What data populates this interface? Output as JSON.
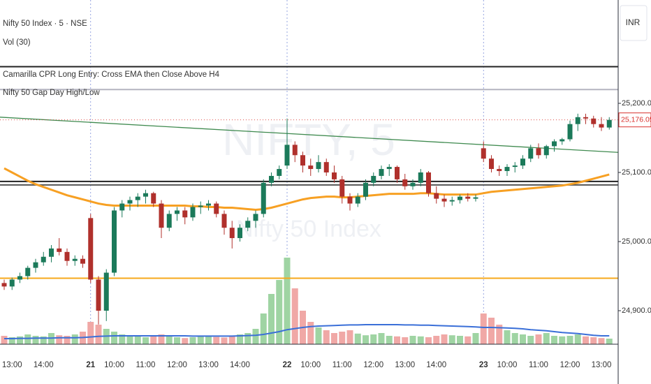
{
  "chart_data": {
    "type": "candlestick",
    "title": "Nifty 50 Index · 5 · NSE",
    "indicators": [
      "Vol (30)",
      "Camarilla CPR Long Entry: Cross EMA then Close Above H4",
      "Nifty 50 Gap Day High/Low"
    ],
    "watermark": {
      "symbol": "NIFTY, 5",
      "name": "Nifty 50 Index"
    },
    "currency": "INR",
    "categories": [
      null,
      "13:00",
      null,
      null,
      null,
      "14:00",
      null,
      null,
      null,
      null,
      null,
      "21",
      null,
      null,
      "10:00",
      null,
      null,
      null,
      "11:00",
      null,
      null,
      null,
      "12:00",
      null,
      null,
      null,
      "13:00",
      null,
      null,
      null,
      "14:00",
      null,
      null,
      null,
      null,
      null,
      "22",
      null,
      null,
      "10:00",
      null,
      null,
      null,
      "11:00",
      null,
      null,
      null,
      "12:00",
      null,
      null,
      null,
      "13:00",
      null,
      null,
      null,
      "14:00",
      null,
      null,
      null,
      null,
      null,
      "23",
      null,
      null,
      "10:00",
      null,
      null,
      null,
      "11:00",
      null,
      null,
      null,
      "12:00",
      null,
      null,
      null,
      "13:00",
      null
    ],
    "open": [
      24940,
      24935,
      24945,
      24950,
      24962,
      24970,
      24978,
      24990,
      24985,
      24972,
      24975,
      25034,
      24945,
      24900,
      24955,
      25045,
      25055,
      25060,
      25065,
      25070,
      25055,
      25020,
      25040,
      25045,
      25035,
      25050,
      25052,
      25055,
      25040,
      25020,
      25005,
      25020,
      25030,
      25040,
      25085,
      25095,
      25110,
      25140,
      25125,
      25110,
      25105,
      25115,
      25100,
      25090,
      25065,
      25055,
      25065,
      25085,
      25095,
      25105,
      25108,
      25090,
      25080,
      25085,
      25100,
      25070,
      25062,
      25058,
      25060,
      25065,
      25062,
      25135,
      25120,
      25105,
      25102,
      25108,
      25110,
      25120,
      25135,
      25125,
      25138,
      25145,
      25148,
      25170,
      25180,
      25178,
      25170,
      25165
    ],
    "high": [
      24945,
      24948,
      24955,
      24965,
      24975,
      24985,
      24995,
      25005,
      24990,
      24980,
      24980,
      25040,
      24950,
      24960,
      25050,
      25060,
      25065,
      25070,
      25075,
      25072,
      25060,
      25045,
      25050,
      25050,
      25055,
      25058,
      25060,
      25058,
      25045,
      25030,
      25025,
      25035,
      25045,
      25090,
      25100,
      25110,
      25178,
      25145,
      25130,
      25120,
      25125,
      25120,
      25110,
      25095,
      25070,
      25070,
      25090,
      25100,
      25110,
      25112,
      25110,
      25098,
      25090,
      25105,
      25102,
      25080,
      25068,
      25065,
      25068,
      25070,
      25068,
      25145,
      25125,
      25110,
      25112,
      25115,
      25125,
      25140,
      25142,
      25140,
      25148,
      25150,
      25175,
      25185,
      25185,
      25182,
      25180,
      25180
    ],
    "low": [
      24930,
      24930,
      24940,
      24945,
      24955,
      24965,
      24970,
      24980,
      24965,
      24965,
      24962,
      24940,
      24880,
      24885,
      24950,
      25035,
      25045,
      25050,
      25055,
      25050,
      25005,
      25015,
      25030,
      25025,
      25030,
      25040,
      25045,
      25035,
      25010,
      24990,
      25000,
      25015,
      25020,
      25035,
      25080,
      25090,
      25105,
      25115,
      25100,
      25095,
      25100,
      25095,
      25085,
      25055,
      25045,
      25050,
      25060,
      25080,
      25090,
      25095,
      25085,
      25075,
      25075,
      25080,
      25065,
      25055,
      25050,
      25052,
      25055,
      25058,
      25058,
      25115,
      25100,
      25095,
      25095,
      25100,
      25105,
      25115,
      25120,
      25120,
      25130,
      25140,
      25145,
      25160,
      25170,
      25165,
      25160,
      25162
    ],
    "close": [
      24935,
      24945,
      24950,
      24962,
      24970,
      24978,
      24990,
      24985,
      24972,
      24975,
      24968,
      24945,
      24900,
      24955,
      25045,
      25055,
      25060,
      25065,
      25070,
      25055,
      25020,
      25040,
      25045,
      25035,
      25050,
      25052,
      25055,
      25040,
      25020,
      25005,
      25020,
      25030,
      25040,
      25085,
      25095,
      25105,
      25140,
      25125,
      25110,
      25105,
      25115,
      25100,
      25090,
      25065,
      25055,
      25065,
      25085,
      25095,
      25105,
      25108,
      25090,
      25080,
      25085,
      25100,
      25070,
      25062,
      25058,
      25060,
      25065,
      25062,
      25064,
      25120,
      25105,
      25102,
      25108,
      25110,
      25120,
      25135,
      25125,
      25138,
      25145,
      25148,
      25170,
      25180,
      25178,
      25170,
      25165,
      25176.05
    ],
    "up_color": "#1b7a5a",
    "down_color": "#b0302c",
    "volume": {
      "values": [
        30,
        25,
        28,
        35,
        30,
        28,
        40,
        32,
        30,
        35,
        45,
        80,
        70,
        55,
        45,
        35,
        30,
        28,
        25,
        30,
        35,
        28,
        25,
        22,
        25,
        28,
        30,
        26,
        24,
        30,
        35,
        40,
        55,
        110,
        180,
        230,
        310,
        200,
        120,
        80,
        60,
        50,
        40,
        45,
        50,
        38,
        32,
        35,
        40,
        30,
        28,
        25,
        30,
        28,
        25,
        30,
        35,
        32,
        30,
        28,
        40,
        110,
        95,
        70,
        50,
        40,
        35,
        30,
        35,
        40,
        30,
        28,
        30,
        35,
        28,
        25,
        22,
        20
      ],
      "ma": [
        20,
        20,
        21,
        21,
        22,
        22,
        22,
        23,
        23,
        23,
        24,
        26,
        28,
        29,
        30,
        30,
        30,
        30,
        30,
        30,
        30,
        30,
        30,
        30,
        29,
        29,
        29,
        29,
        29,
        29,
        30,
        31,
        32,
        35,
        40,
        45,
        52,
        56,
        60,
        63,
        65,
        66,
        67,
        68,
        69,
        69,
        70,
        70,
        70,
        70,
        70,
        69,
        69,
        68,
        68,
        67,
        66,
        65,
        64,
        63,
        62,
        60,
        60,
        59,
        58,
        57,
        55,
        52,
        50,
        48,
        45,
        42,
        40,
        38,
        35,
        32,
        30,
        30
      ],
      "vlim": [
        0,
        400
      ],
      "up_color": "#9fd4a3",
      "down_color": "#f0a8a6",
      "ma_color": "#3a6fd8"
    },
    "ema": {
      "color": "#f7a023",
      "values": [
        25106,
        25100,
        25094,
        25088,
        25083,
        25079,
        25075,
        25071,
        25067,
        25064,
        25061,
        25058,
        25055,
        25053,
        25052,
        25052,
        25052,
        25052,
        25052,
        25052,
        25052,
        25052,
        25052,
        25052,
        25051,
        25051,
        25050,
        25050,
        25049,
        25049,
        25048,
        25047,
        25046,
        25047,
        25049,
        25052,
        25055,
        25058,
        25061,
        25063,
        25064,
        25065,
        25065,
        25064,
        25064,
        25065,
        25066,
        25067,
        25068,
        25069,
        25069,
        25069,
        25069,
        25070,
        25070,
        25069,
        25068,
        25068,
        25068,
        25068,
        25068,
        25070,
        25072,
        25073,
        25074,
        25075,
        25076,
        25077,
        25078,
        25079,
        25080,
        25081,
        25083,
        25085,
        25088,
        25091,
        25094,
        25097
      ]
    },
    "levels": [
      {
        "value": 25253,
        "color": "#222222"
      },
      {
        "value": 25220,
        "color": "#b4b4c0"
      },
      {
        "value": 25087,
        "color": "#222222"
      },
      {
        "value": 25082,
        "color": "#555555"
      },
      {
        "value": 24947,
        "color": "#f7a81b"
      }
    ],
    "trend_line": {
      "values": [
        25180,
        25129
      ],
      "color": "#3f8a4f"
    },
    "last_price": {
      "value": 25176.05,
      "label": "25,176.05",
      "color": "#d9302c"
    },
    "ylim": [
      24851.5,
      25349.5
    ],
    "yticks": [
      {
        "value": 25200,
        "label": "25,200.00"
      },
      {
        "value": 25100,
        "label": "25,100.00"
      },
      {
        "value": 25000,
        "label": "25,000.00"
      },
      {
        "value": 24900,
        "label": "24,900.00"
      }
    ]
  }
}
